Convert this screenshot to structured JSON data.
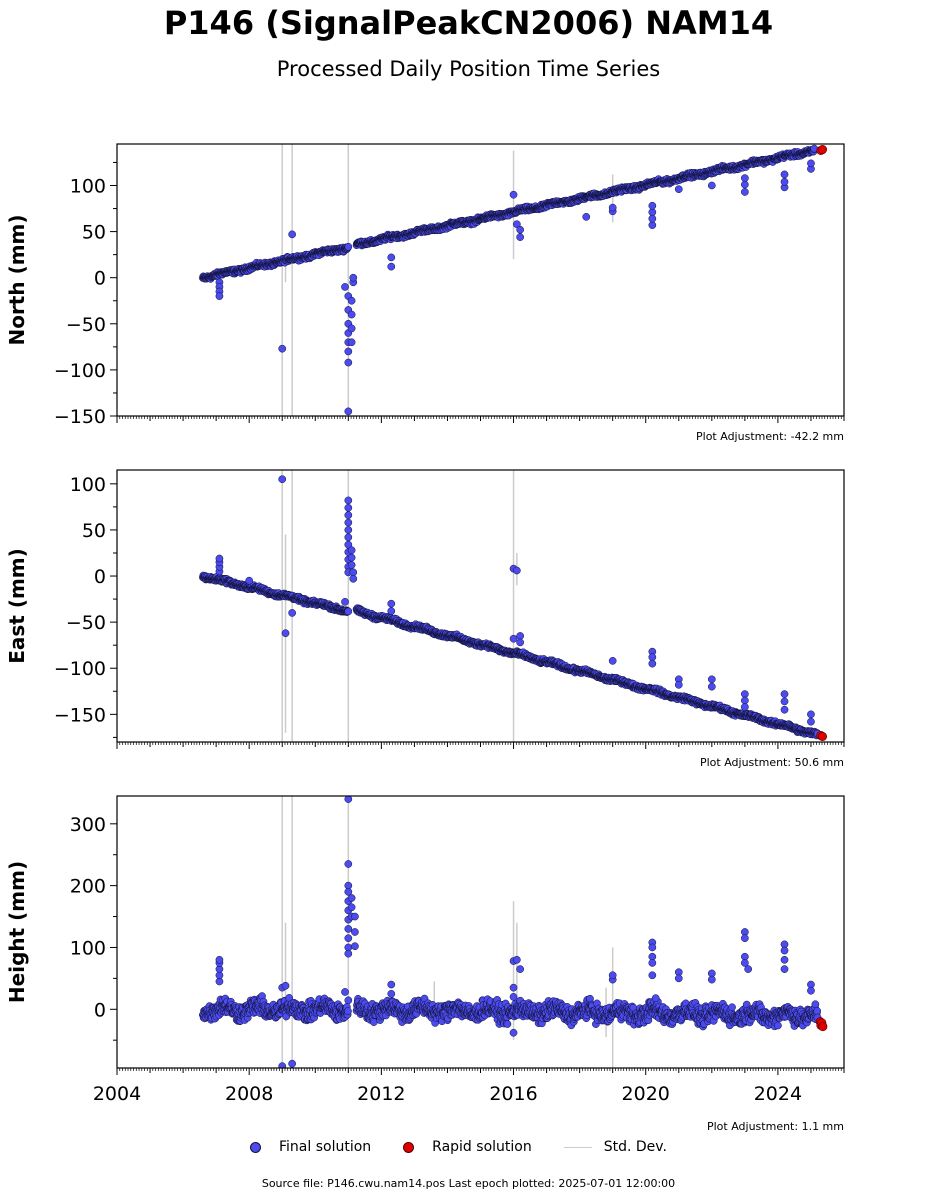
{
  "title": "P146 (SignalPeakCN2006) NAM14",
  "subtitle": "Processed Daily Position Time Series",
  "legend": {
    "final": "Final solution",
    "rapid": "Rapid solution",
    "std": "Std. Dev."
  },
  "colors": {
    "final": "#4b4bef",
    "rapid": "#e00000",
    "std": "#cccccc",
    "edge": "#101030"
  },
  "source": "Source file: P146.cwu.nam14.pos  Last epoch plotted: 2025-07-01 12:00:00",
  "chart_data": [
    {
      "type": "scatter",
      "ylabel": "North (mm)",
      "xlim": [
        2004.0,
        2026.0
      ],
      "ylim": [
        -150,
        145
      ],
      "yticks": [
        -150,
        -100,
        -50,
        0,
        50,
        100
      ],
      "ytick_labels": [
        "−150",
        "−100",
        "−50",
        "0",
        "50",
        "100"
      ],
      "adjustment": "Plot Adjustment: -42.2 mm",
      "series": [
        {
          "segments": [
            {
              "x0": 2006.6,
              "x1": 2011.0,
              "y0": 0,
              "y1": 33,
              "noise": 2
            },
            {
              "x0": 2011.25,
              "x1": 2025.1,
              "y0": 36,
              "y1": 138,
              "noise": 2
            }
          ]
        }
      ],
      "outliers": [
        [
          2007.1,
          -5
        ],
        [
          2007.1,
          -10
        ],
        [
          2007.1,
          -15
        ],
        [
          2007.1,
          -20
        ],
        [
          2009.0,
          -77
        ],
        [
          2009.3,
          47
        ],
        [
          2010.9,
          -10
        ],
        [
          2011.0,
          -20
        ],
        [
          2011.0,
          -35
        ],
        [
          2011.0,
          -50
        ],
        [
          2011.0,
          -60
        ],
        [
          2011.0,
          -70
        ],
        [
          2011.0,
          -80
        ],
        [
          2011.0,
          -92
        ],
        [
          2011.0,
          -145
        ],
        [
          2011.1,
          -25
        ],
        [
          2011.1,
          -40
        ],
        [
          2011.1,
          -55
        ],
        [
          2011.1,
          -70
        ],
        [
          2011.15,
          -5
        ],
        [
          2011.15,
          0
        ],
        [
          2012.3,
          12
        ],
        [
          2012.3,
          22
        ],
        [
          2016.0,
          90
        ],
        [
          2016.1,
          58
        ],
        [
          2016.2,
          52
        ],
        [
          2016.2,
          44
        ],
        [
          2018.2,
          66
        ],
        [
          2019.0,
          72
        ],
        [
          2019.0,
          76
        ],
        [
          2020.2,
          57
        ],
        [
          2020.2,
          64
        ],
        [
          2020.2,
          71
        ],
        [
          2020.2,
          78
        ],
        [
          2021.0,
          96
        ],
        [
          2022.0,
          100
        ],
        [
          2023.0,
          93
        ],
        [
          2023.0,
          101
        ],
        [
          2023.0,
          108
        ],
        [
          2024.2,
          98
        ],
        [
          2024.2,
          104
        ],
        [
          2024.2,
          112
        ],
        [
          2025.0,
          118
        ],
        [
          2025.0,
          124
        ]
      ],
      "std_bars": [
        [
          2009.0,
          -150,
          145
        ],
        [
          2009.1,
          -5,
          25
        ],
        [
          2009.3,
          -150,
          145
        ],
        [
          2011.0,
          -150,
          145
        ],
        [
          2016.0,
          20,
          138
        ],
        [
          2019.0,
          60,
          112
        ]
      ],
      "rapid": [
        [
          2025.3,
          138
        ],
        [
          2025.35,
          139
        ]
      ]
    },
    {
      "type": "scatter",
      "ylabel": "East (mm)",
      "xlim": [
        2004.0,
        2026.0
      ],
      "ylim": [
        -180,
        115
      ],
      "yticks": [
        -150,
        -100,
        -50,
        0,
        50,
        100
      ],
      "ytick_labels": [
        "−150",
        "−100",
        "−50",
        "0",
        "50",
        "100"
      ],
      "adjustment": "Plot Adjustment: 50.6 mm",
      "series": [
        {
          "segments": [
            {
              "x0": 2006.6,
              "x1": 2011.0,
              "y0": 0,
              "y1": -38,
              "noise": 2
            },
            {
              "x0": 2011.25,
              "x1": 2025.2,
              "y0": -38,
              "y1": -172,
              "noise": 2
            }
          ]
        }
      ],
      "outliers": [
        [
          2007.1,
          5
        ],
        [
          2007.1,
          10
        ],
        [
          2007.1,
          15
        ],
        [
          2007.1,
          19
        ],
        [
          2008.0,
          -5
        ],
        [
          2009.0,
          105
        ],
        [
          2009.1,
          -62
        ],
        [
          2009.3,
          -40
        ],
        [
          2011.0,
          82
        ],
        [
          2011.0,
          74
        ],
        [
          2011.0,
          66
        ],
        [
          2011.0,
          58
        ],
        [
          2011.0,
          50
        ],
        [
          2011.0,
          42
        ],
        [
          2011.0,
          34
        ],
        [
          2011.0,
          26
        ],
        [
          2011.0,
          18
        ],
        [
          2011.0,
          10
        ],
        [
          2011.0,
          4
        ],
        [
          2011.1,
          28
        ],
        [
          2011.1,
          20
        ],
        [
          2011.1,
          12
        ],
        [
          2011.15,
          4
        ],
        [
          2011.15,
          -3
        ],
        [
          2010.9,
          -28
        ],
        [
          2012.3,
          -30
        ],
        [
          2012.3,
          -38
        ],
        [
          2016.0,
          8
        ],
        [
          2016.1,
          6
        ],
        [
          2016.0,
          -68
        ],
        [
          2016.2,
          -65
        ],
        [
          2016.2,
          -72
        ],
        [
          2019.0,
          -92
        ],
        [
          2020.2,
          -82
        ],
        [
          2020.2,
          -88
        ],
        [
          2020.2,
          -95
        ],
        [
          2021.0,
          -112
        ],
        [
          2021.0,
          -118
        ],
        [
          2022.0,
          -112
        ],
        [
          2022.0,
          -120
        ],
        [
          2023.0,
          -128
        ],
        [
          2023.0,
          -135
        ],
        [
          2023.0,
          -142
        ],
        [
          2024.2,
          -128
        ],
        [
          2024.2,
          -136
        ],
        [
          2024.2,
          -145
        ],
        [
          2025.0,
          -150
        ],
        [
          2025.0,
          -158
        ]
      ],
      "std_bars": [
        [
          2009.0,
          -180,
          115
        ],
        [
          2009.1,
          -170,
          45
        ],
        [
          2009.3,
          -180,
          115
        ],
        [
          2011.0,
          -180,
          115
        ],
        [
          2016.0,
          -180,
          115
        ],
        [
          2016.1,
          -10,
          25
        ]
      ],
      "rapid": [
        [
          2025.3,
          -173
        ],
        [
          2025.35,
          -174
        ]
      ]
    },
    {
      "type": "scatter",
      "ylabel": "Height (mm)",
      "xlim": [
        2004.0,
        2026.0
      ],
      "ylim": [
        -95,
        345
      ],
      "yticks": [
        0,
        100,
        200,
        300
      ],
      "ytick_labels": [
        "0",
        "100",
        "200",
        "300"
      ],
      "xticks": [
        2004,
        2008,
        2012,
        2016,
        2020,
        2024
      ],
      "xtick_labels": [
        "2004",
        "2008",
        "2012",
        "2016",
        "2020",
        "2024"
      ],
      "adjustment": "Plot Adjustment: 1.1 mm",
      "series": [
        {
          "segments": [
            {
              "x0": 2006.6,
              "x1": 2011.0,
              "y0": 0,
              "y1": 0,
              "noise": 12
            },
            {
              "x0": 2011.25,
              "x1": 2025.2,
              "y0": 0,
              "y1": -10,
              "noise": 12
            }
          ]
        }
      ],
      "outliers": [
        [
          2007.1,
          45
        ],
        [
          2007.1,
          55
        ],
        [
          2007.1,
          65
        ],
        [
          2007.1,
          75
        ],
        [
          2007.1,
          80
        ],
        [
          2009.0,
          35
        ],
        [
          2009.0,
          -92
        ],
        [
          2009.1,
          38
        ],
        [
          2009.3,
          -88
        ],
        [
          2011.0,
          340
        ],
        [
          2011.0,
          235
        ],
        [
          2011.0,
          200
        ],
        [
          2011.0,
          190
        ],
        [
          2011.0,
          175
        ],
        [
          2011.0,
          160
        ],
        [
          2011.0,
          145
        ],
        [
          2011.0,
          130
        ],
        [
          2011.0,
          115
        ],
        [
          2011.0,
          100
        ],
        [
          2011.0,
          90
        ],
        [
          2011.1,
          180
        ],
        [
          2011.1,
          165
        ],
        [
          2011.1,
          150
        ],
        [
          2011.2,
          150
        ],
        [
          2011.2,
          125
        ],
        [
          2011.2,
          102
        ],
        [
          2010.9,
          28
        ],
        [
          2012.3,
          25
        ],
        [
          2012.3,
          40
        ],
        [
          2016.0,
          78
        ],
        [
          2016.1,
          80
        ],
        [
          2016.0,
          35
        ],
        [
          2016.0,
          20
        ],
        [
          2016.0,
          -38
        ],
        [
          2016.2,
          65
        ],
        [
          2019.0,
          48
        ],
        [
          2019.0,
          55
        ],
        [
          2020.2,
          108
        ],
        [
          2020.2,
          100
        ],
        [
          2020.2,
          85
        ],
        [
          2020.2,
          75
        ],
        [
          2020.2,
          55
        ],
        [
          2020.3,
          18
        ],
        [
          2021.0,
          60
        ],
        [
          2021.0,
          50
        ],
        [
          2022.0,
          58
        ],
        [
          2022.0,
          48
        ],
        [
          2023.0,
          125
        ],
        [
          2023.0,
          115
        ],
        [
          2023.0,
          85
        ],
        [
          2023.0,
          75
        ],
        [
          2023.1,
          65
        ],
        [
          2024.2,
          105
        ],
        [
          2024.2,
          95
        ],
        [
          2024.2,
          80
        ],
        [
          2024.2,
          65
        ],
        [
          2025.0,
          40
        ],
        [
          2025.0,
          30
        ]
      ],
      "std_bars": [
        [
          2009.0,
          -95,
          345
        ],
        [
          2009.1,
          -20,
          140
        ],
        [
          2009.3,
          -95,
          345
        ],
        [
          2011.0,
          -95,
          345
        ],
        [
          2013.6,
          -15,
          45
        ],
        [
          2016.0,
          -50,
          175
        ],
        [
          2016.1,
          0,
          140
        ],
        [
          2018.8,
          -45,
          35
        ],
        [
          2019.0,
          -95,
          100
        ]
      ],
      "rapid": [
        [
          2025.28,
          -20
        ],
        [
          2025.3,
          -26
        ],
        [
          2025.33,
          -22
        ],
        [
          2025.36,
          -28
        ]
      ]
    }
  ]
}
